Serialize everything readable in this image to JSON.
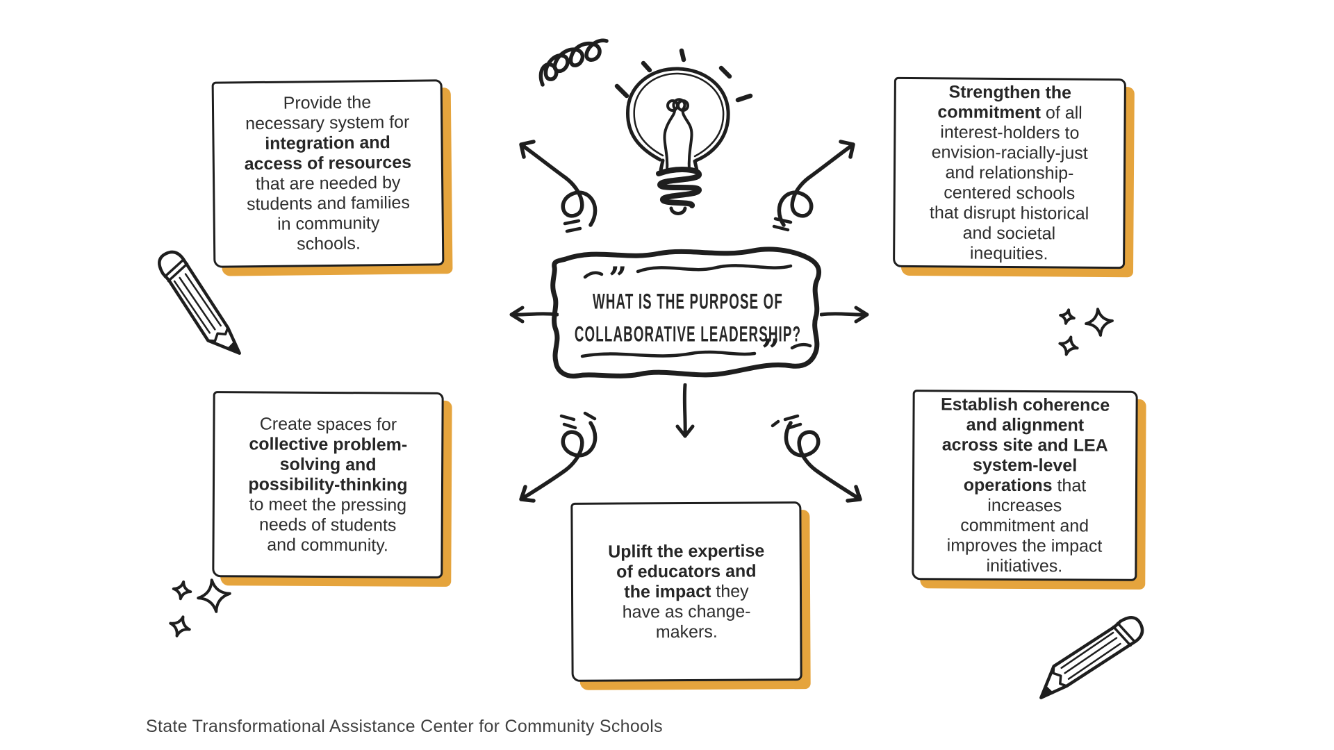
{
  "colors": {
    "background": "#ffffff",
    "ink": "#1e1e1e",
    "accent_shadow": "#e5a43d",
    "box_text": "#2d2d2d",
    "footer_text": "#404040"
  },
  "center_question": {
    "line1": "WHAT IS THE PURPOSE OF",
    "line2": "COLLABORATIVE LEADERSHIP?",
    "open_quote": "”",
    "close_quote": "”"
  },
  "purpose_boxes": [
    {
      "id": "top-left",
      "segments": [
        {
          "text": "Provide the\nnecessary system for\n",
          "bold": false
        },
        {
          "text": "integration and\naccess of resources",
          "bold": true
        },
        {
          "text": "\nthat are needed by\nstudents and families\nin community\nschools.",
          "bold": false
        }
      ]
    },
    {
      "id": "top-right",
      "segments": [
        {
          "text": "Strengthen the\ncommitment",
          "bold": true
        },
        {
          "text": " of all\ninterest-holders to\nenvision-racially-just\nand relationship-\ncentered schools\nthat disrupt historical\nand societal\ninequities.",
          "bold": false
        }
      ]
    },
    {
      "id": "bottom-left",
      "segments": [
        {
          "text": "Create spaces for\n",
          "bold": false
        },
        {
          "text": "collective problem-\nsolving and\npossibility-thinking",
          "bold": true
        },
        {
          "text": "\nto meet the pressing\nneeds of students\nand community.",
          "bold": false
        }
      ]
    },
    {
      "id": "bottom-center",
      "segments": [
        {
          "text": "Uplift the expertise\nof educators and\nthe impact",
          "bold": true
        },
        {
          "text": " they\nhave as change-\nmakers.",
          "bold": false
        }
      ]
    },
    {
      "id": "bottom-right",
      "segments": [
        {
          "text": "Establish coherence\nand alignment\nacross site and LEA\nsystem-level\noperations",
          "bold": true
        },
        {
          "text": " that\nincreases\ncommitment and\nimproves the impact\ninitiatives.",
          "bold": false
        }
      ]
    }
  ],
  "footer": {
    "text": "State Transformational Assistance Center for Community Schools"
  },
  "doodles": [
    "lightbulb-doodle",
    "spiral-squiggle-doodle",
    "pencil-doodle-top-left",
    "pencil-doodle-bottom-right",
    "sparkles-doodle-left",
    "sparkles-doodle-right",
    "curly-arrow-up-left-icon",
    "curly-arrow-up-right-icon",
    "curly-arrow-down-left-icon",
    "curly-arrow-down-right-icon",
    "arrow-left-icon",
    "arrow-right-icon",
    "arrow-down-icon"
  ]
}
